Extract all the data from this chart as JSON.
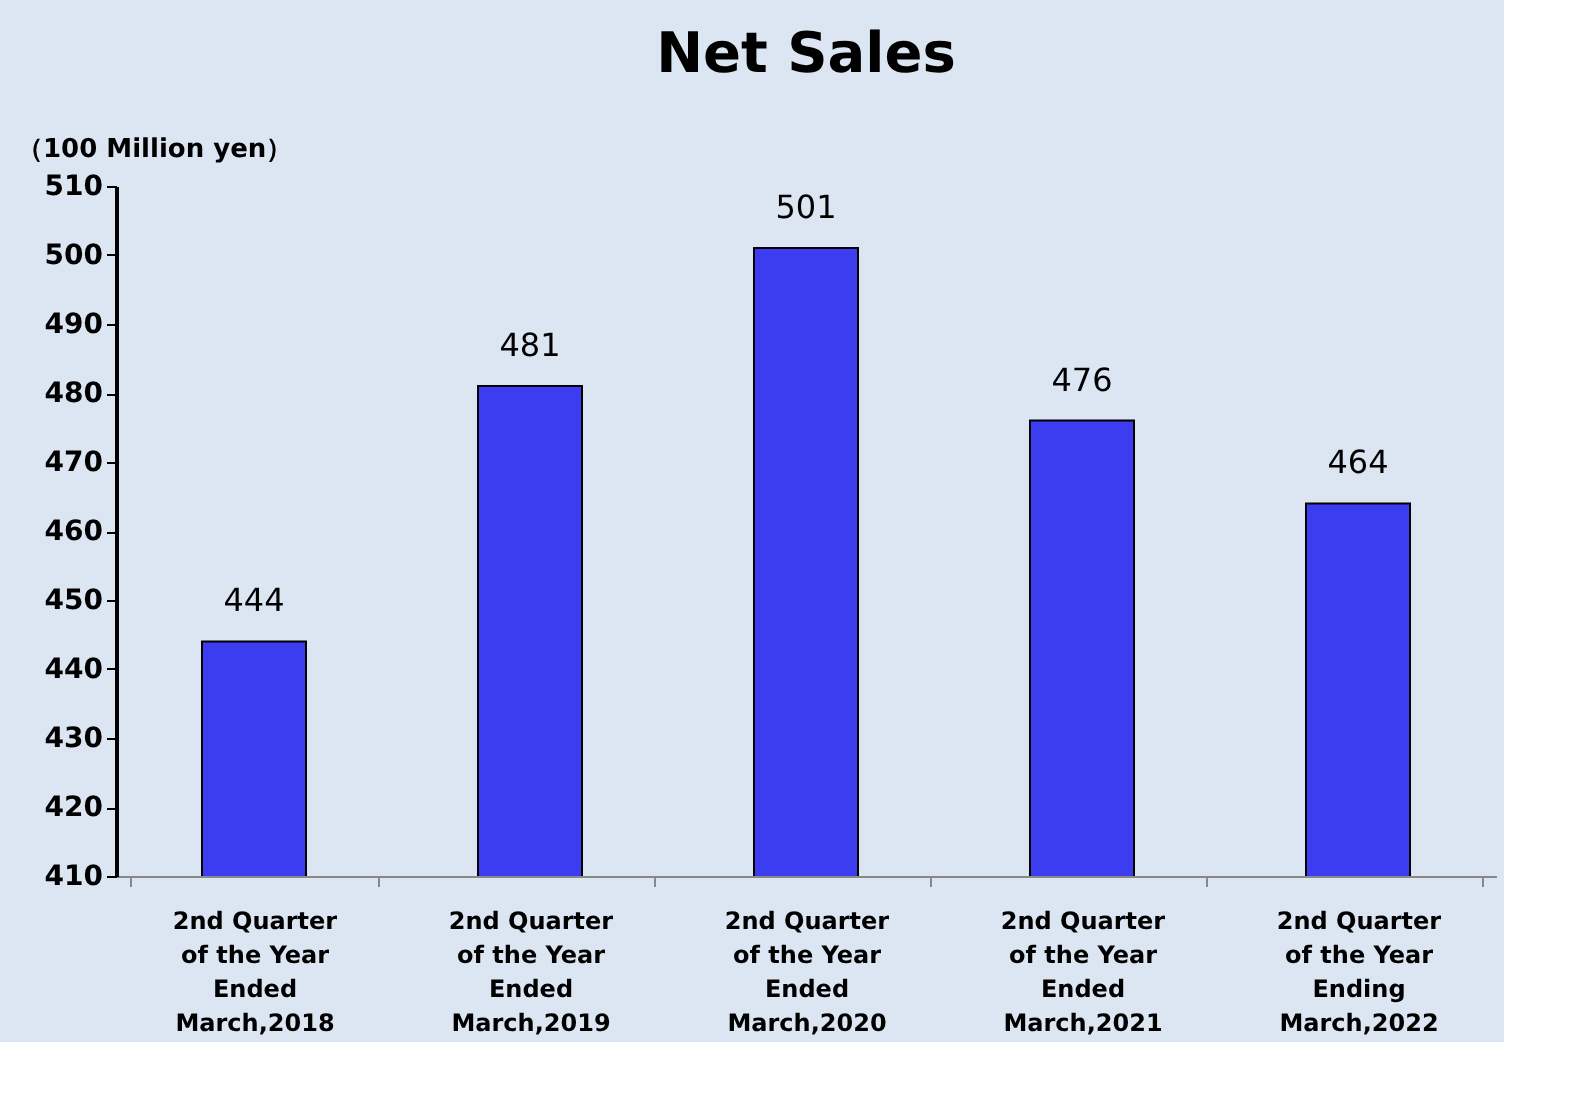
{
  "chart_data": {
    "type": "bar",
    "title": "Net Sales",
    "ylabel": "（100 Million yen）",
    "categories": [
      "2nd Quarter\nof the Year\nEnded\nMarch,2018",
      "2nd Quarter\nof the Year\nEnded\nMarch,2019",
      "2nd Quarter\nof the Year\nEnded\nMarch,2020",
      "2nd Quarter\nof the Year\nEnded\nMarch,2021",
      "2nd Quarter\nof the Year\nEnding\nMarch,2022"
    ],
    "values": [
      444,
      481,
      501,
      476,
      464
    ],
    "color": "#3c3cf0",
    "ylim": [
      410,
      510
    ],
    "yticks": [
      410,
      420,
      430,
      440,
      450,
      460,
      470,
      480,
      490,
      500,
      510
    ],
    "data_labels": true,
    "grid": false
  }
}
